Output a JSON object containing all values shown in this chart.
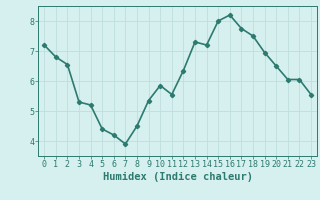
{
  "xlabel": "Humidex (Indice chaleur)",
  "x": [
    0,
    1,
    2,
    3,
    4,
    5,
    6,
    7,
    8,
    9,
    10,
    11,
    12,
    13,
    14,
    15,
    16,
    17,
    18,
    19,
    20,
    21,
    22,
    23
  ],
  "y": [
    7.2,
    6.8,
    6.55,
    5.3,
    5.2,
    4.4,
    4.2,
    3.9,
    4.5,
    5.35,
    5.85,
    5.55,
    6.35,
    7.3,
    7.2,
    8.0,
    8.2,
    7.75,
    7.5,
    6.95,
    6.5,
    6.05,
    6.05,
    5.55
  ],
  "line_color": "#2d7a6e",
  "marker": "D",
  "marker_size": 2.2,
  "bg_color": "#d6f0f0",
  "grid_color": "#c0dede",
  "axis_color": "#2d7a6e",
  "tick_color": "#2d7a6e",
  "xlim": [
    -0.5,
    23.5
  ],
  "ylim": [
    3.5,
    8.5
  ],
  "yticks": [
    4,
    5,
    6,
    7,
    8
  ],
  "xticks": [
    0,
    1,
    2,
    3,
    4,
    5,
    6,
    7,
    8,
    9,
    10,
    11,
    12,
    13,
    14,
    15,
    16,
    17,
    18,
    19,
    20,
    21,
    22,
    23
  ],
  "tick_fontsize": 6,
  "xlabel_fontsize": 7.5,
  "linewidth": 1.2
}
